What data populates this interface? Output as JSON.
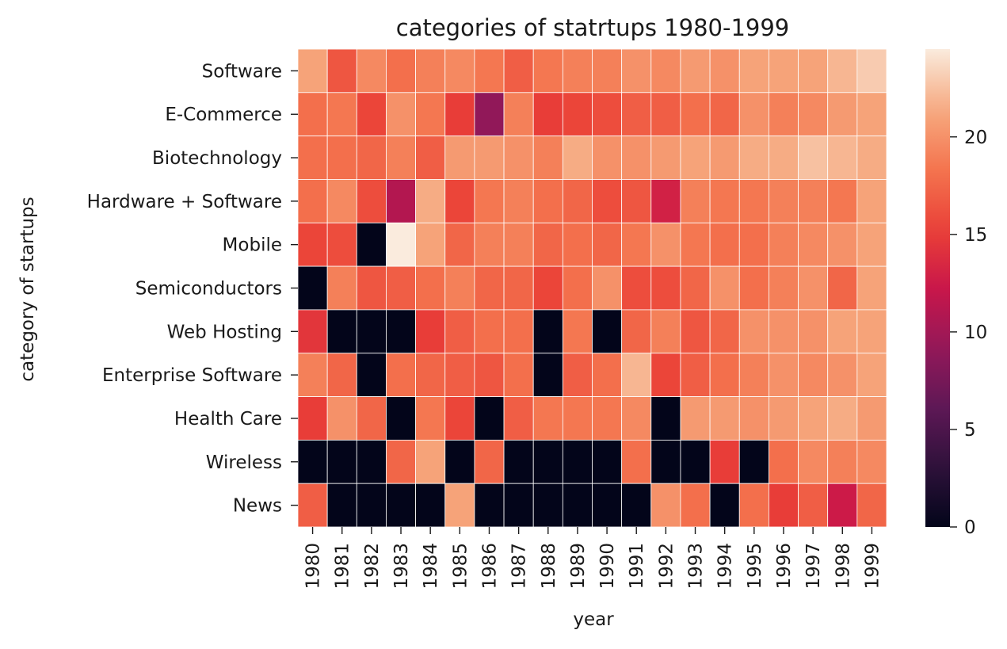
{
  "chart_data": {
    "type": "heatmap",
    "title": "categories of statrtups 1980-1999",
    "xlabel": "year",
    "ylabel": "category of startups",
    "x": [
      "1980",
      "1981",
      "1982",
      "1983",
      "1984",
      "1985",
      "1986",
      "1987",
      "1988",
      "1989",
      "1990",
      "1991",
      "1992",
      "1993",
      "1994",
      "1995",
      "1996",
      "1997",
      "1998",
      "1999"
    ],
    "y": [
      "Software",
      "E-Commerce",
      "Biotechnology",
      "Hardware + Software",
      "Mobile",
      "Semiconductors",
      "Web Hosting",
      "Enterprise Software",
      "Health Care",
      "Wireless",
      "News"
    ],
    "values": [
      [
        21,
        16.5,
        19.5,
        18,
        19,
        19.5,
        18.5,
        17,
        18.5,
        19,
        19,
        20,
        19.5,
        20.5,
        20,
        21,
        21,
        21,
        22,
        23
      ],
      [
        18,
        18.5,
        15.5,
        20,
        18.5,
        15,
        9,
        19,
        15,
        15.5,
        16,
        17,
        17,
        18,
        17.5,
        20,
        19,
        19.5,
        20.5,
        21
      ],
      [
        18,
        18,
        17.5,
        19,
        17,
        20.5,
        20.5,
        20,
        19,
        21.5,
        20,
        20,
        20.5,
        21,
        20.5,
        21.5,
        21.5,
        22.5,
        22,
        21.5
      ],
      [
        18,
        19.5,
        16,
        11,
        21.5,
        15.5,
        18.5,
        19,
        18,
        17.5,
        16,
        16.5,
        13,
        19,
        18.5,
        18.5,
        19,
        19,
        18.5,
        21
      ],
      [
        15.5,
        16,
        0,
        24.5,
        21,
        17.5,
        19,
        19,
        17.5,
        18,
        17.5,
        18.5,
        20,
        18.5,
        18,
        18,
        19,
        19.5,
        20,
        21
      ],
      [
        0,
        19,
        16.5,
        17,
        18,
        19,
        17.5,
        17.5,
        15.5,
        18,
        20,
        16,
        16,
        17.5,
        20,
        18,
        19,
        20,
        17.5,
        21
      ],
      [
        14.5,
        0,
        0,
        0,
        15,
        17,
        18,
        18,
        0,
        18.5,
        0,
        17.5,
        19,
        16.5,
        17.5,
        20,
        20,
        20,
        21,
        21
      ],
      [
        19,
        17.5,
        0,
        18,
        17.5,
        17,
        16.5,
        18,
        0,
        17,
        18,
        22,
        15.5,
        17,
        18,
        19,
        20,
        19.5,
        20,
        21
      ],
      [
        15,
        20,
        17.5,
        0,
        18.5,
        15.5,
        0,
        17,
        18.5,
        18.5,
        18.5,
        19.5,
        0,
        20.5,
        20.5,
        20,
        20.5,
        21,
        21.5,
        20.5
      ],
      [
        0,
        0,
        0,
        17.5,
        21,
        0,
        17.5,
        0,
        0,
        0,
        0,
        18,
        0,
        0,
        15,
        0,
        18,
        19.5,
        19,
        19.5
      ],
      [
        17,
        0,
        0,
        0,
        0,
        21,
        0,
        0,
        0,
        0,
        0,
        0,
        20,
        18,
        0,
        18,
        15,
        17,
        12.5,
        17.5
      ]
    ],
    "vmin": 0,
    "vmax": 24.5,
    "colorbar_ticks": [
      "0",
      "5",
      "10",
      "15",
      "20"
    ],
    "colormap": "rocket",
    "grid_lines": true,
    "grid_line_color": "#ffffff",
    "legend": "colorbar-right"
  }
}
